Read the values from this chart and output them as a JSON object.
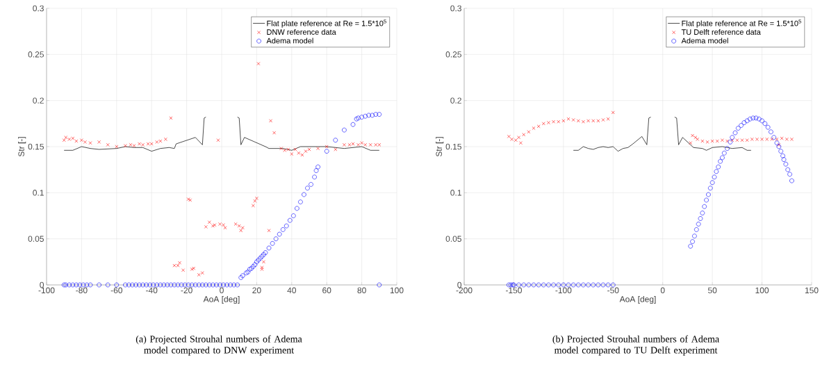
{
  "chart_data": [
    {
      "type": "scatter",
      "xlabel": "AoA [deg]",
      "ylabel": "Str  [-]",
      "xlim": [
        -100,
        100
      ],
      "ylim": [
        0,
        0.3
      ],
      "xticks": [
        -100,
        -80,
        -60,
        -40,
        -20,
        0,
        20,
        40,
        60,
        80,
        100
      ],
      "yticks": [
        0,
        0.05,
        0.1,
        0.15,
        0.2,
        0.25,
        0.3
      ],
      "grid": true,
      "legend": "top right",
      "series": [
        {
          "name": "Flat plate reference at Re = 1.5*10$^{5}$",
          "type": "line",
          "color": "#000000",
          "marker": "none",
          "line_style": "solid",
          "x": [
            -90,
            -85,
            -80,
            -75,
            -70,
            -60,
            -55,
            -50,
            -45,
            -40,
            -35,
            -30,
            -27,
            -26,
            -15,
            -11,
            -10,
            -9,
            0,
            9,
            10,
            11,
            13,
            25,
            27,
            35,
            40,
            45,
            60,
            70,
            80,
            85,
            90
          ],
          "values": [
            0.146,
            0.146,
            0.15,
            0.148,
            0.147,
            0.148,
            0.15,
            0.149,
            0.149,
            0.145,
            0.148,
            0.149,
            0.148,
            0.153,
            0.16,
            0.152,
            0.181,
            0.182,
            null,
            0.182,
            0.181,
            0.152,
            0.16,
            0.15,
            0.148,
            0.148,
            0.146,
            0.15,
            0.15,
            0.148,
            0.15,
            0.146,
            0.146
          ]
        },
        {
          "name": "DNW reference data",
          "color": "#ff0000",
          "marker": "cross",
          "x": [
            -90,
            -89,
            -87,
            -85,
            -83,
            -80,
            -78,
            -75,
            -70,
            -65,
            -60,
            -55,
            -52,
            -50,
            -47,
            -45,
            -42,
            -40,
            -37,
            -35,
            -32,
            -29,
            -2,
            21,
            28,
            30,
            34,
            36,
            38,
            40,
            42,
            44,
            46,
            48,
            50,
            55,
            60,
            65,
            70,
            73,
            75,
            78,
            80,
            82,
            85,
            88,
            90,
            -27,
            -25,
            -24,
            -22,
            -19,
            -18,
            -17,
            -16,
            -13,
            -11,
            -9,
            -7,
            -5,
            -4,
            -1,
            1,
            2,
            8,
            10,
            11,
            12,
            18,
            19,
            20,
            23,
            23,
            24,
            27
          ],
          "values": [
            0.157,
            0.16,
            0.158,
            0.159,
            0.156,
            0.157,
            0.155,
            0.154,
            0.155,
            0.152,
            0.15,
            0.151,
            0.152,
            0.151,
            0.153,
            0.152,
            0.153,
            0.153,
            0.155,
            0.156,
            0.158,
            0.181,
            0.157,
            0.24,
            0.178,
            0.165,
            0.148,
            0.146,
            0.147,
            0.142,
            0.147,
            0.143,
            0.141,
            0.145,
            0.147,
            0.148,
            0.15,
            0.147,
            0.152,
            0.152,
            0.153,
            0.152,
            0.154,
            0.152,
            0.152,
            0.152,
            0.152,
            0.021,
            0.021,
            0.024,
            0.016,
            0.093,
            0.092,
            0.017,
            0.018,
            0.011,
            0.013,
            0.063,
            0.068,
            0.064,
            0.065,
            0.066,
            0.065,
            0.062,
            0.066,
            0.064,
            0.059,
            0.062,
            0.086,
            0.091,
            0.094,
            0.017,
            0.019,
            0.025,
            0.059
          ]
        },
        {
          "name": "Adema model",
          "color": "#0000ff",
          "marker": "circle",
          "x": [
            -90,
            -89,
            -87,
            -85,
            -83,
            -81,
            -79,
            -77,
            -75,
            -70,
            -65,
            -60,
            -55,
            -53,
            -51,
            -49,
            -47,
            -45,
            -43,
            -41,
            -39,
            -37,
            -35,
            -33,
            -31,
            -29,
            -27,
            -25,
            -23,
            -21,
            -19,
            -17,
            -15,
            -13,
            -11,
            -9,
            -7,
            -5,
            -3,
            -1,
            1,
            3,
            5,
            7,
            9,
            11,
            12,
            14,
            15,
            16,
            17,
            18,
            19,
            20,
            21,
            22,
            23,
            24,
            25,
            27,
            29,
            31,
            33,
            35,
            37,
            39,
            41,
            43,
            45,
            47,
            49,
            51,
            53,
            54,
            55,
            60,
            65,
            70,
            75,
            77,
            78,
            80,
            82,
            84,
            86,
            88,
            90,
            90
          ],
          "values": [
            0,
            0,
            0,
            0,
            0,
            0,
            0,
            0,
            0,
            0,
            0,
            0,
            0,
            0,
            0,
            0,
            0,
            0,
            0,
            0,
            0,
            0,
            0,
            0,
            0,
            0,
            0,
            0,
            0,
            0,
            0,
            0,
            0,
            0,
            0,
            0,
            0,
            0,
            0,
            0,
            0,
            0,
            0,
            0,
            0,
            0.008,
            0.01,
            0.013,
            0.014,
            0.017,
            0.018,
            0.02,
            0.022,
            0.025,
            0.027,
            0.029,
            0.031,
            0.033,
            0.035,
            0.04,
            0.045,
            0.05,
            0.055,
            0.06,
            0.064,
            0.07,
            0.075,
            0.083,
            0.09,
            0.098,
            0.105,
            0.109,
            0.117,
            0.124,
            0.128,
            0.145,
            0.157,
            0.168,
            0.174,
            0.18,
            0.181,
            0.182,
            0.183,
            0.184,
            0.184,
            0.185,
            0.185,
            0
          ]
        }
      ],
      "annotations": [
        "(a) Projected Strouhal numbers of Adema model compared to DNW experiment"
      ]
    },
    {
      "type": "scatter",
      "xlabel": "AoA [deg]",
      "ylabel": "Str  [-]",
      "xlim": [
        -200,
        150
      ],
      "ylim": [
        0,
        0.3
      ],
      "xticks": [
        -200,
        -150,
        -100,
        -50,
        0,
        50,
        100,
        150
      ],
      "yticks": [
        0,
        0.05,
        0.1,
        0.15,
        0.2,
        0.25,
        0.3
      ],
      "grid": true,
      "legend": "top right",
      "series": [
        {
          "name": "Flat plate reference at Re = 1.5*10$^{5}$",
          "type": "line",
          "color": "#000000",
          "marker": "none",
          "line_style": "solid",
          "x": [
            -90,
            -85,
            -80,
            -75,
            -70,
            -65,
            -60,
            -55,
            -50,
            -45,
            -40,
            -35,
            -30,
            -21,
            -16,
            -14,
            -12,
            0,
            12,
            14,
            16,
            20,
            31,
            40,
            44,
            50,
            60,
            70,
            80,
            85,
            89
          ],
          "values": [
            0.146,
            0.146,
            0.15,
            0.148,
            0.147,
            0.149,
            0.15,
            0.149,
            0.15,
            0.145,
            0.148,
            0.149,
            0.153,
            0.161,
            0.152,
            0.181,
            0.182,
            null,
            0.182,
            0.181,
            0.152,
            0.16,
            0.149,
            0.148,
            0.146,
            0.149,
            0.15,
            0.148,
            0.149,
            0.146,
            0.146
          ]
        },
        {
          "name": "TU Delft reference data",
          "color": "#ff0000",
          "marker": "cross",
          "x": [
            -155,
            -152,
            -148,
            -145,
            -143,
            -140,
            -135,
            -130,
            -125,
            -120,
            -115,
            -110,
            -105,
            -100,
            -95,
            -90,
            -85,
            -80,
            -75,
            -70,
            -65,
            -60,
            -55,
            -50,
            28,
            30,
            33,
            35,
            40,
            45,
            50,
            55,
            60,
            65,
            70,
            75,
            80,
            85,
            90,
            95,
            100,
            105,
            110,
            115,
            117,
            120,
            125,
            130
          ],
          "values": [
            0.161,
            0.158,
            0.157,
            0.16,
            0.154,
            0.163,
            0.166,
            0.17,
            0.172,
            0.175,
            0.176,
            0.177,
            0.177,
            0.178,
            0.18,
            0.179,
            0.178,
            0.177,
            0.178,
            0.178,
            0.178,
            0.179,
            0.18,
            0.187,
            0.154,
            0.162,
            0.16,
            0.158,
            0.156,
            0.155,
            0.156,
            0.156,
            0.157,
            0.156,
            0.157,
            0.157,
            0.157,
            0.157,
            0.158,
            0.158,
            0.158,
            0.158,
            0.158,
            0.158,
            0.152,
            0.159,
            0.158,
            0.158
          ]
        },
        {
          "name": "Adema model",
          "color": "#0000ff",
          "marker": "circle",
          "x": [
            -155,
            -153,
            -151,
            -150,
            -145,
            -140,
            -135,
            -130,
            -125,
            -120,
            -115,
            -110,
            -105,
            -100,
            -95,
            -90,
            -85,
            -80,
            -75,
            -70,
            -65,
            -60,
            -55,
            -50,
            28,
            30,
            32,
            34,
            36,
            38,
            40,
            42,
            44,
            46,
            48,
            50,
            52,
            54,
            56,
            58,
            60,
            62,
            65,
            68,
            70,
            73,
            76,
            79,
            82,
            85,
            88,
            91,
            94,
            97,
            100,
            103,
            106,
            109,
            112,
            115,
            117,
            119,
            121,
            122,
            124,
            126,
            128,
            130
          ],
          "values": [
            0,
            0,
            0,
            0,
            0,
            0,
            0,
            0,
            0,
            0,
            0,
            0,
            0,
            0,
            0,
            0,
            0,
            0,
            0,
            0,
            0,
            0,
            0,
            0,
            0.042,
            0.047,
            0.053,
            0.06,
            0.066,
            0.072,
            0.078,
            0.085,
            0.092,
            0.098,
            0.105,
            0.111,
            0.117,
            0.123,
            0.128,
            0.134,
            0.138,
            0.143,
            0.148,
            0.155,
            0.16,
            0.165,
            0.17,
            0.173,
            0.176,
            0.178,
            0.18,
            0.181,
            0.181,
            0.18,
            0.178,
            0.175,
            0.171,
            0.166,
            0.16,
            0.154,
            0.15,
            0.145,
            0.14,
            0.136,
            0.131,
            0.125,
            0.12,
            0.113
          ]
        }
      ],
      "annotations": [
        "(b) Projected Strouhal numbers of Adema model compared to TU Delft experiment"
      ]
    }
  ]
}
